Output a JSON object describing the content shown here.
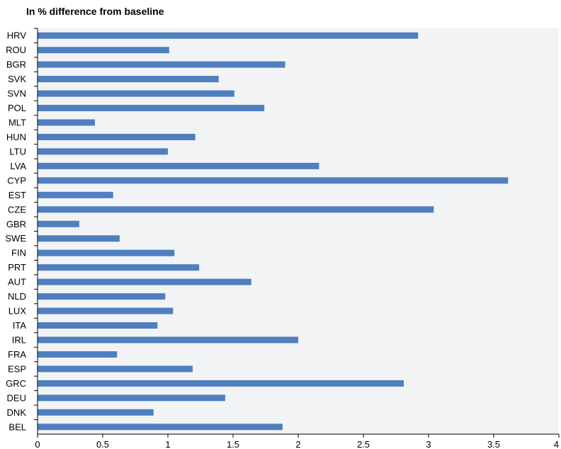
{
  "chart_data": {
    "type": "bar",
    "orientation": "horizontal",
    "title": "In % difference from baseline",
    "categories": [
      "HRV",
      "ROU",
      "BGR",
      "SVK",
      "SVN",
      "POL",
      "MLT",
      "HUN",
      "LTU",
      "LVA",
      "CYP",
      "EST",
      "CZE",
      "GBR",
      "SWE",
      "FIN",
      "PRT",
      "AUT",
      "NLD",
      "LUX",
      "ITA",
      "IRL",
      "FRA",
      "ESP",
      "GRC",
      "DEU",
      "DNK",
      "BEL"
    ],
    "values": [
      2.92,
      1.01,
      1.9,
      1.39,
      1.51,
      1.74,
      0.44,
      1.21,
      1.0,
      2.16,
      3.61,
      0.58,
      3.04,
      0.32,
      0.63,
      1.05,
      1.24,
      1.64,
      0.98,
      1.04,
      0.92,
      2.0,
      0.61,
      1.19,
      2.81,
      1.44,
      0.89,
      1.88
    ],
    "x_ticks": [
      "0",
      "0.5",
      "1",
      "1.5",
      "2",
      "2.5",
      "3",
      "3.5",
      "4"
    ],
    "xlim": [
      0,
      4
    ],
    "xlabel": "",
    "ylabel": "",
    "grid": false,
    "colors": {
      "bar": "#4f7fbf",
      "plot_background": "#f2f3f5",
      "axis": "#000000"
    }
  }
}
